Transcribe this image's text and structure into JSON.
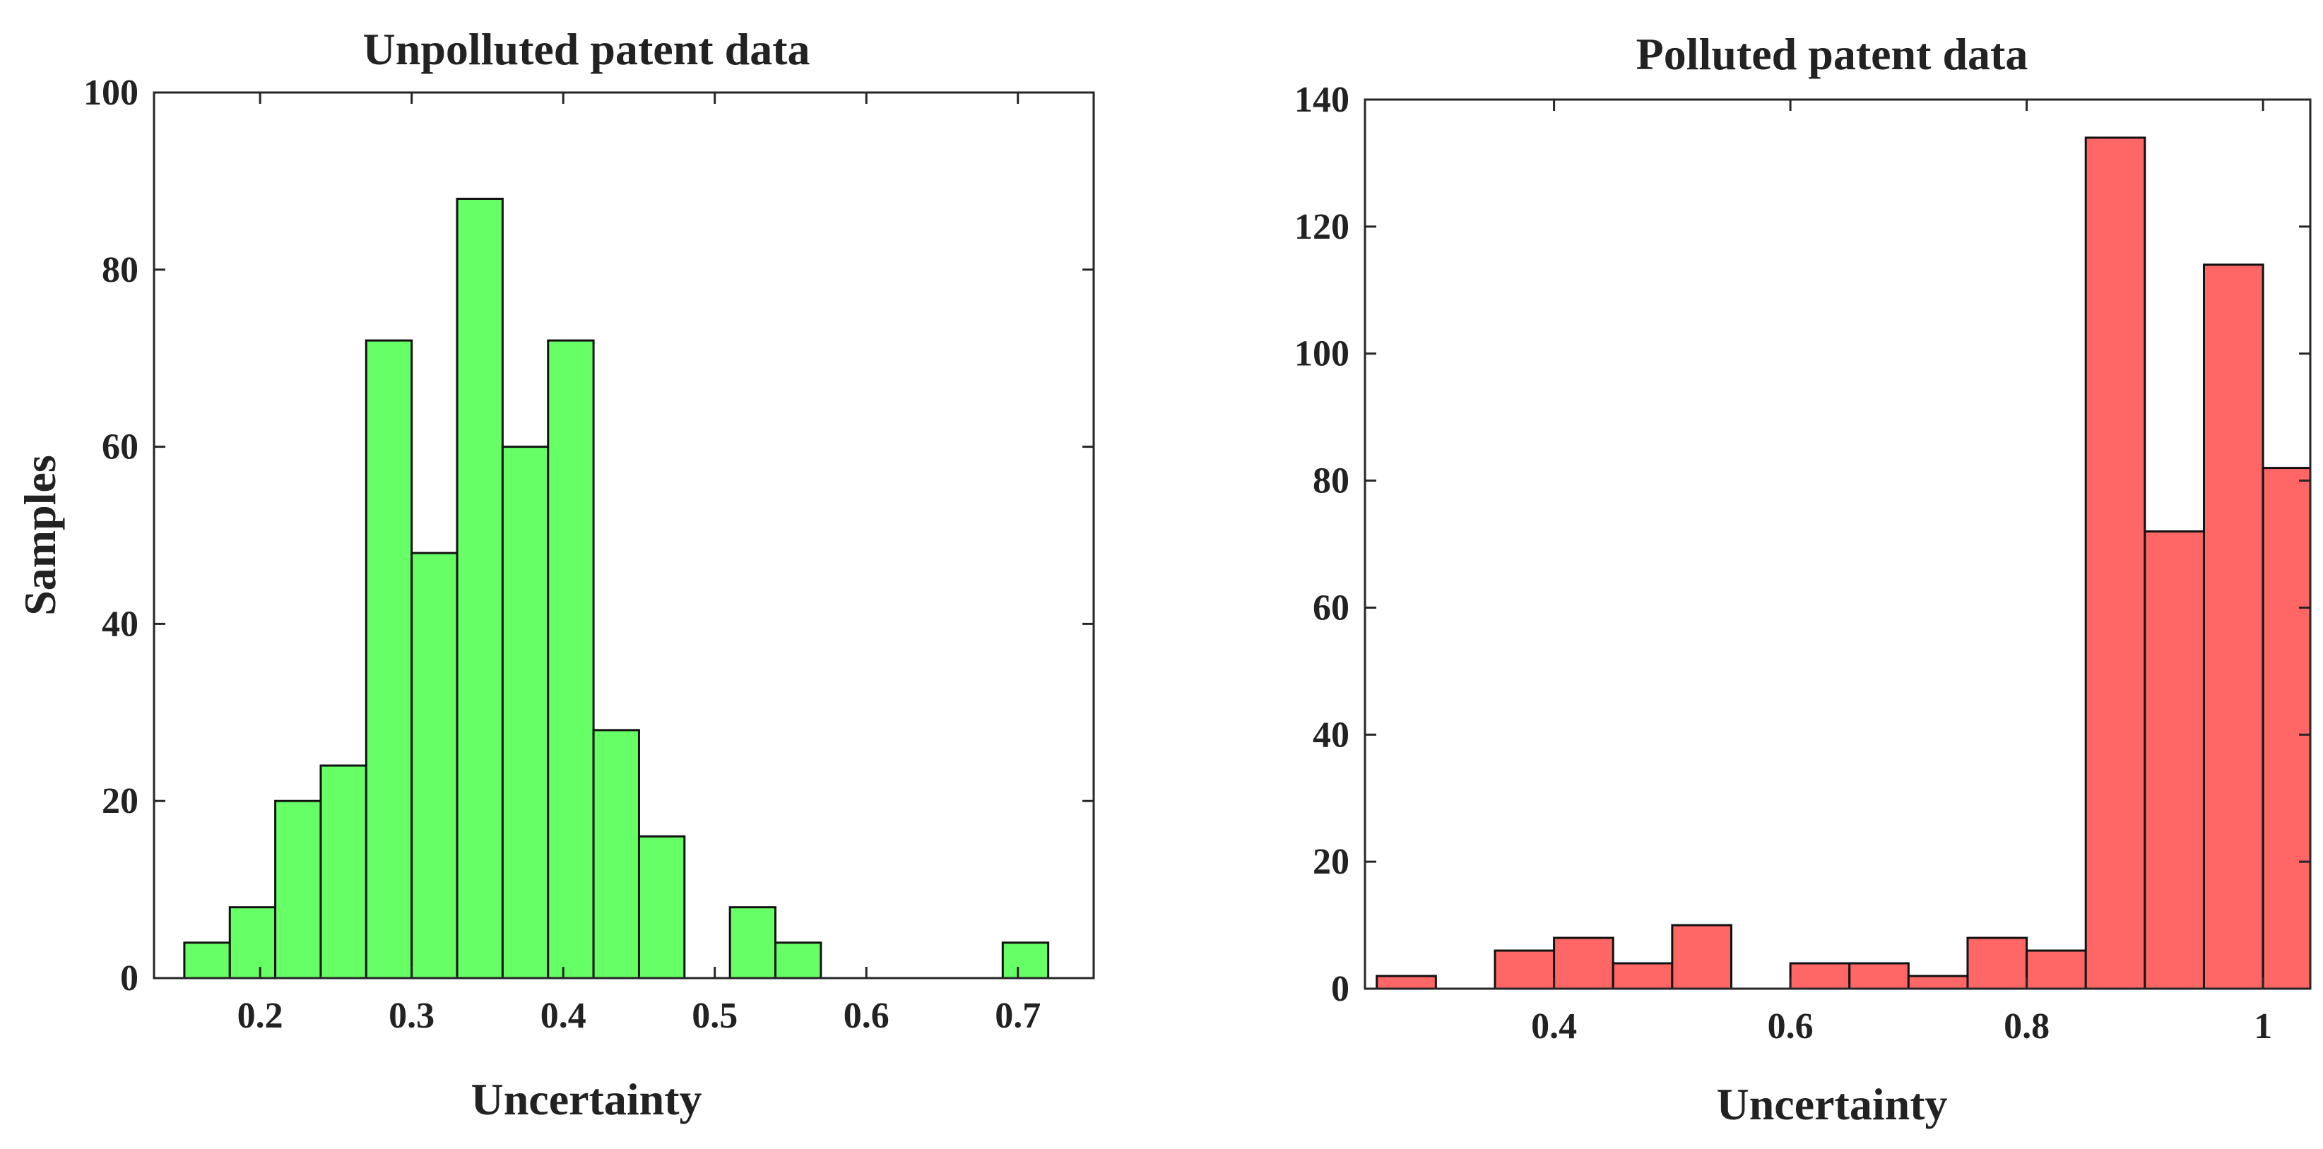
{
  "chart_data": [
    {
      "type": "bar",
      "title": "Unpolluted patent data",
      "xlabel": "Uncertainty",
      "ylabel": "Samples",
      "xlim": [
        0.13,
        0.75
      ],
      "ylim": [
        0,
        100
      ],
      "xticks": [
        "0.2",
        "0.3",
        "0.4",
        "0.5",
        "0.6",
        "0.7"
      ],
      "yticks": [
        "0",
        "20",
        "40",
        "60",
        "80",
        "100"
      ],
      "bar_color": "#66ff66",
      "bins": [
        {
          "x0": 0.15,
          "x1": 0.18,
          "value": 4
        },
        {
          "x0": 0.18,
          "x1": 0.21,
          "value": 8
        },
        {
          "x0": 0.21,
          "x1": 0.24,
          "value": 20
        },
        {
          "x0": 0.24,
          "x1": 0.27,
          "value": 24
        },
        {
          "x0": 0.27,
          "x1": 0.3,
          "value": 72
        },
        {
          "x0": 0.3,
          "x1": 0.33,
          "value": 48
        },
        {
          "x0": 0.33,
          "x1": 0.36,
          "value": 88
        },
        {
          "x0": 0.36,
          "x1": 0.39,
          "value": 60
        },
        {
          "x0": 0.39,
          "x1": 0.42,
          "value": 72
        },
        {
          "x0": 0.42,
          "x1": 0.45,
          "value": 28
        },
        {
          "x0": 0.45,
          "x1": 0.48,
          "value": 16
        },
        {
          "x0": 0.51,
          "x1": 0.54,
          "value": 8
        },
        {
          "x0": 0.54,
          "x1": 0.57,
          "value": 4
        },
        {
          "x0": 0.69,
          "x1": 0.72,
          "value": 4
        }
      ]
    },
    {
      "type": "bar",
      "title": "Polluted patent data",
      "xlabel": "Uncertainty",
      "ylabel": "",
      "xlim": [
        0.24,
        1.04
      ],
      "ylim": [
        0,
        140
      ],
      "xticks": [
        "0.4",
        "0.6",
        "0.8",
        "1"
      ],
      "yticks": [
        "0",
        "20",
        "40",
        "60",
        "80",
        "100",
        "120",
        "140"
      ],
      "bar_color": "#ff6666",
      "bins": [
        {
          "x0": 0.25,
          "x1": 0.3,
          "value": 2
        },
        {
          "x0": 0.35,
          "x1": 0.4,
          "value": 6
        },
        {
          "x0": 0.4,
          "x1": 0.45,
          "value": 8
        },
        {
          "x0": 0.45,
          "x1": 0.5,
          "value": 4
        },
        {
          "x0": 0.5,
          "x1": 0.55,
          "value": 10
        },
        {
          "x0": 0.6,
          "x1": 0.65,
          "value": 4
        },
        {
          "x0": 0.65,
          "x1": 0.7,
          "value": 4
        },
        {
          "x0": 0.7,
          "x1": 0.75,
          "value": 2
        },
        {
          "x0": 0.75,
          "x1": 0.8,
          "value": 8
        },
        {
          "x0": 0.8,
          "x1": 0.85,
          "value": 6
        },
        {
          "x0": 0.85,
          "x1": 0.9,
          "value": 134
        },
        {
          "x0": 0.9,
          "x1": 0.95,
          "value": 72
        },
        {
          "x0": 0.95,
          "x1": 1.0,
          "value": 114
        },
        {
          "x0": 1.0,
          "x1": 1.05,
          "value": 82
        }
      ]
    }
  ]
}
